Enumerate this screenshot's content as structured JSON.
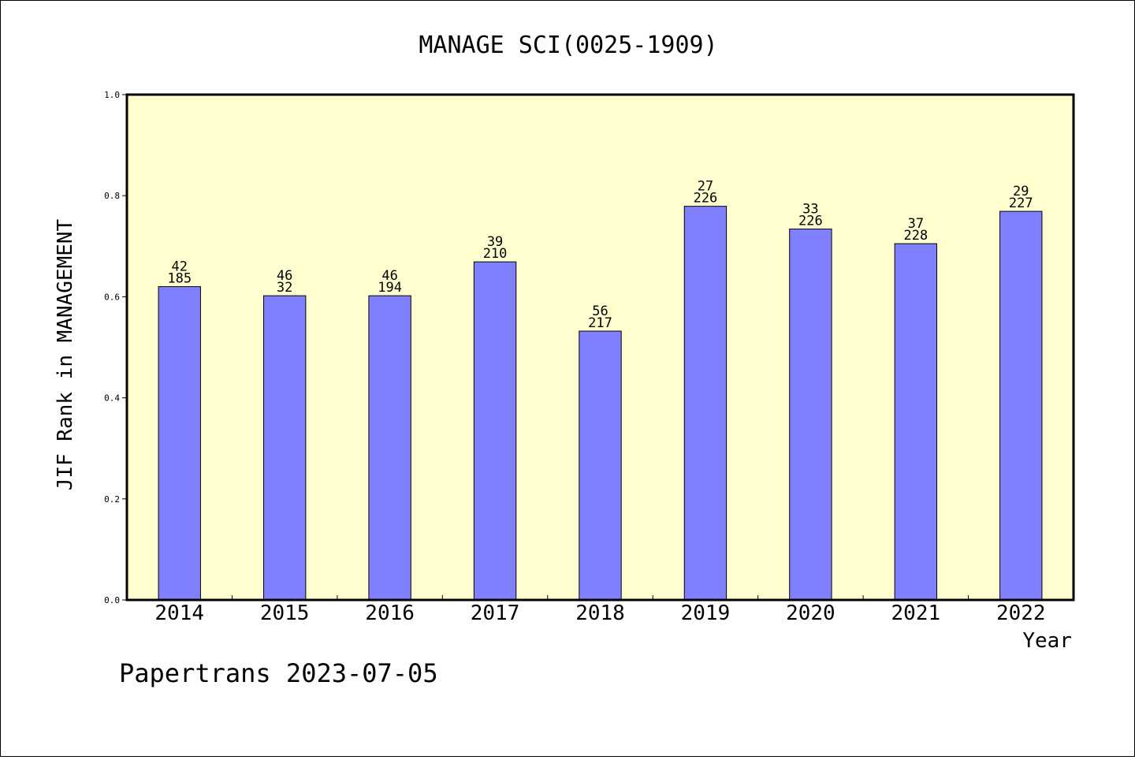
{
  "chart_data": {
    "type": "bar",
    "title": "MANAGE SCI(0025-1909)",
    "xlabel": "Year",
    "ylabel": "JIF Rank in MANAGEMENT",
    "ylim": [
      0.0,
      1.0
    ],
    "yticks": [
      "0.0",
      "0.2",
      "0.4",
      "0.6",
      "0.8",
      "1.0"
    ],
    "categories": [
      "2014",
      "2015",
      "2016",
      "2017",
      "2018",
      "2019",
      "2020",
      "2021",
      "2022"
    ],
    "values": [
      0.62,
      0.602,
      0.602,
      0.669,
      0.532,
      0.779,
      0.734,
      0.705,
      0.769
    ],
    "rank": [
      "42",
      "46",
      "46",
      "39",
      "56",
      "27",
      "33",
      "37",
      "29"
    ],
    "total": [
      "185",
      "32",
      "194",
      "210",
      "217",
      "226",
      "226",
      "228",
      "227"
    ],
    "grid": false,
    "colors": {
      "plot_bg": "#FFFFD0",
      "bar": "#8080FF",
      "bar_edge": "#000000"
    }
  },
  "footer": {
    "text": "Papertrans 2023-07-05"
  }
}
